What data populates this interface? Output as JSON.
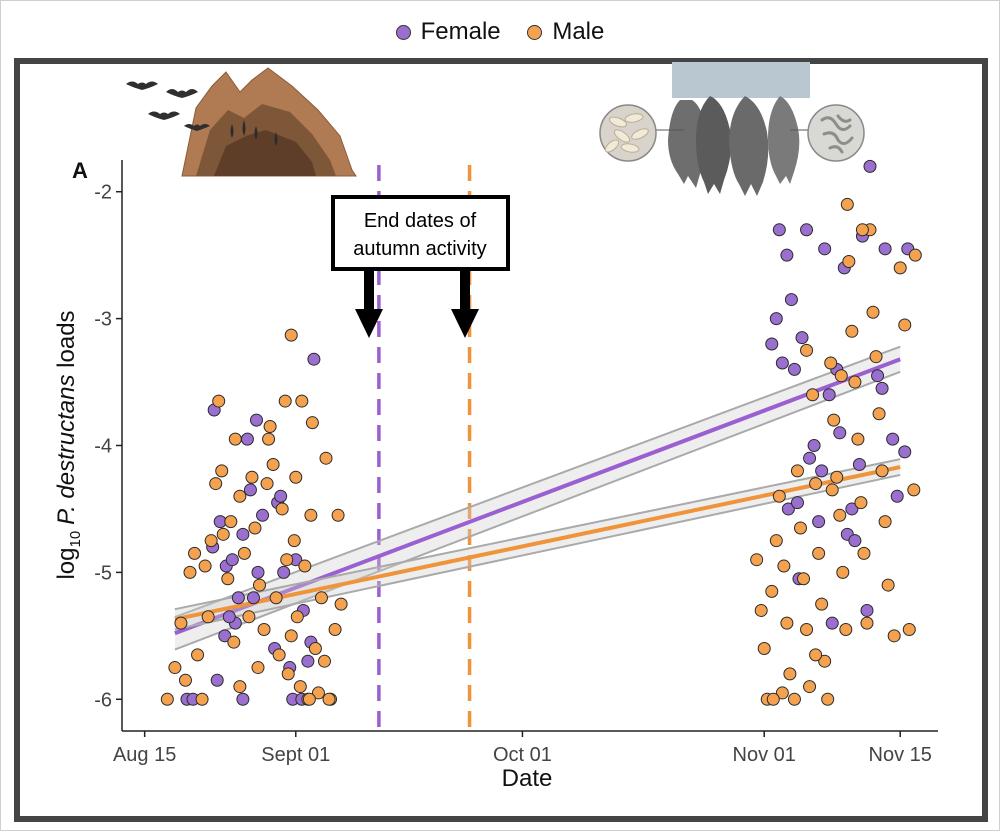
{
  "legend": {
    "female_label": "Female",
    "male_label": "Male"
  },
  "colors": {
    "female": "#9b6fcf",
    "male": "#f4a24f",
    "female_line": "#9a5fd0",
    "male_line": "#f0943b",
    "ci_line": "#aaaaaa",
    "frame": "#444444"
  },
  "panel_label": "A",
  "annotation": {
    "line1": "End dates of",
    "line2": "autumn activity"
  },
  "icons": {
    "left": "cave-with-bats-icon",
    "right": "hibernating-bats-with-fungus-icon"
  },
  "chart_data": {
    "type": "scatter",
    "xlabel": "Date",
    "ylabel_prefix": "log",
    "ylabel_sub": "10",
    "ylabel_italic": "P. destructans",
    "ylabel_suffix": " loads",
    "x_unit": "days since Aug 15",
    "xlim": [
      -1.5,
      52.5
    ],
    "ylim": [
      -6.25,
      -1.75
    ],
    "x_ticks": [
      {
        "value": 0,
        "label": "Aug 15"
      },
      {
        "value": 10,
        "label": "Sept 01"
      },
      {
        "value": 25,
        "label": "Oct 01"
      },
      {
        "value": 41,
        "label": "Nov 01"
      },
      {
        "value": 50,
        "label": "Nov 15"
      }
    ],
    "y_ticks": [
      {
        "value": -2,
        "label": "-2"
      },
      {
        "value": -3,
        "label": "-3"
      },
      {
        "value": -4,
        "label": "-4"
      },
      {
        "value": -5,
        "label": "-5"
      },
      {
        "value": -6,
        "label": "-6"
      }
    ],
    "vlines": [
      {
        "series": "Female",
        "x": 15.5
      },
      {
        "series": "Male",
        "x": 21.5
      }
    ],
    "trend_lines": [
      {
        "series": "Female",
        "x": [
          2,
          50
        ],
        "y": [
          -5.48,
          -3.32
        ],
        "ci_halfwidth": 0.08
      },
      {
        "series": "Male",
        "x": [
          2,
          50
        ],
        "y": [
          -5.37,
          -4.17
        ],
        "ci_halfwidth": 0.05
      }
    ],
    "series": [
      {
        "name": "Female",
        "points": [
          [
            2.8,
            -6.0
          ],
          [
            3.2,
            -6.0
          ],
          [
            4.8,
            -5.85
          ],
          [
            4.5,
            -4.8
          ],
          [
            5.0,
            -4.6
          ],
          [
            5.4,
            -4.95
          ],
          [
            5.3,
            -5.5
          ],
          [
            5.8,
            -4.9
          ],
          [
            6.2,
            -5.2
          ],
          [
            6.5,
            -4.7
          ],
          [
            4.6,
            -3.72
          ],
          [
            7.0,
            -4.35
          ],
          [
            6.8,
            -3.95
          ],
          [
            7.4,
            -3.8
          ],
          [
            7.5,
            -5.0
          ],
          [
            7.8,
            -4.55
          ],
          [
            6.0,
            -5.4
          ],
          [
            6.5,
            -6.0
          ],
          [
            8.6,
            -5.6
          ],
          [
            8.8,
            -4.45
          ],
          [
            9.0,
            -4.4
          ],
          [
            9.2,
            -5.0
          ],
          [
            9.6,
            -5.75
          ],
          [
            9.8,
            -6.0
          ],
          [
            10.0,
            -4.9
          ],
          [
            10.5,
            -5.3
          ],
          [
            10.4,
            -6.0
          ],
          [
            11.2,
            -3.32
          ],
          [
            11.0,
            -5.55
          ],
          [
            10.8,
            -5.7
          ],
          [
            5.6,
            -5.35
          ],
          [
            7.2,
            -5.2
          ],
          [
            41.5,
            -3.2
          ],
          [
            42.0,
            -2.3
          ],
          [
            42.5,
            -2.5
          ],
          [
            42.8,
            -2.85
          ],
          [
            42.2,
            -3.35
          ],
          [
            43.0,
            -3.4
          ],
          [
            43.5,
            -3.15
          ],
          [
            43.8,
            -2.3
          ],
          [
            44.0,
            -4.1
          ],
          [
            44.3,
            -4.0
          ],
          [
            44.6,
            -4.6
          ],
          [
            42.6,
            -4.5
          ],
          [
            43.2,
            -4.45
          ],
          [
            45.0,
            -2.45
          ],
          [
            45.3,
            -3.6
          ],
          [
            45.8,
            -3.4
          ],
          [
            46.0,
            -3.9
          ],
          [
            46.5,
            -4.7
          ],
          [
            46.8,
            -4.5
          ],
          [
            47.0,
            -4.75
          ],
          [
            46.3,
            -2.6
          ],
          [
            47.5,
            -2.35
          ],
          [
            48.0,
            -1.8
          ],
          [
            47.3,
            -4.15
          ],
          [
            48.5,
            -3.45
          ],
          [
            48.8,
            -3.55
          ],
          [
            49.0,
            -2.45
          ],
          [
            49.5,
            -3.95
          ],
          [
            49.8,
            -4.4
          ],
          [
            50.3,
            -4.05
          ],
          [
            50.5,
            -2.45
          ],
          [
            47.8,
            -5.3
          ],
          [
            44.8,
            -4.2
          ],
          [
            45.5,
            -5.4
          ],
          [
            43.3,
            -5.05
          ],
          [
            41.8,
            -3.0
          ]
        ]
      },
      {
        "name": "Male",
        "points": [
          [
            1.5,
            -6.0
          ],
          [
            2.0,
            -5.75
          ],
          [
            2.4,
            -5.4
          ],
          [
            3.0,
            -5.0
          ],
          [
            3.5,
            -5.65
          ],
          [
            3.8,
            -6.0
          ],
          [
            4.2,
            -5.35
          ],
          [
            4.0,
            -4.95
          ],
          [
            4.4,
            -4.75
          ],
          [
            4.7,
            -4.3
          ],
          [
            4.9,
            -3.65
          ],
          [
            5.1,
            -4.2
          ],
          [
            5.2,
            -4.7
          ],
          [
            5.5,
            -5.05
          ],
          [
            5.7,
            -4.6
          ],
          [
            6.0,
            -3.95
          ],
          [
            6.3,
            -4.4
          ],
          [
            6.6,
            -4.85
          ],
          [
            6.9,
            -5.35
          ],
          [
            7.1,
            -4.25
          ],
          [
            7.3,
            -4.65
          ],
          [
            7.6,
            -5.1
          ],
          [
            7.9,
            -5.45
          ],
          [
            8.1,
            -4.3
          ],
          [
            8.3,
            -3.85
          ],
          [
            8.5,
            -4.15
          ],
          [
            8.7,
            -5.2
          ],
          [
            8.9,
            -5.65
          ],
          [
            9.1,
            -4.5
          ],
          [
            9.3,
            -3.65
          ],
          [
            9.4,
            -4.9
          ],
          [
            9.5,
            -5.8
          ],
          [
            9.7,
            -5.5
          ],
          [
            9.9,
            -4.75
          ],
          [
            10.1,
            -5.35
          ],
          [
            10.3,
            -5.9
          ],
          [
            10.6,
            -4.95
          ],
          [
            10.8,
            -6.0
          ],
          [
            11.0,
            -4.55
          ],
          [
            11.3,
            -5.6
          ],
          [
            11.5,
            -5.95
          ],
          [
            11.7,
            -5.2
          ],
          [
            12.0,
            -4.1
          ],
          [
            12.3,
            -6.0
          ],
          [
            12.6,
            -5.45
          ],
          [
            12.8,
            -4.55
          ],
          [
            13.0,
            -5.25
          ],
          [
            9.7,
            -3.13
          ],
          [
            10.4,
            -3.65
          ],
          [
            11.1,
            -3.82
          ],
          [
            10.0,
            -4.25
          ],
          [
            8.2,
            -3.95
          ],
          [
            6.3,
            -5.9
          ],
          [
            7.5,
            -5.75
          ],
          [
            10.9,
            -6.0
          ],
          [
            11.9,
            -5.7
          ],
          [
            12.2,
            -6.0
          ],
          [
            5.9,
            -5.55
          ],
          [
            3.3,
            -4.85
          ],
          [
            2.7,
            -5.85
          ],
          [
            40.5,
            -4.9
          ],
          [
            40.8,
            -5.3
          ],
          [
            41.0,
            -5.6
          ],
          [
            41.2,
            -6.0
          ],
          [
            41.5,
            -5.15
          ],
          [
            41.8,
            -4.75
          ],
          [
            42.0,
            -4.4
          ],
          [
            42.3,
            -4.95
          ],
          [
            42.5,
            -5.4
          ],
          [
            42.7,
            -5.8
          ],
          [
            43.0,
            -6.0
          ],
          [
            43.2,
            -4.2
          ],
          [
            43.4,
            -4.65
          ],
          [
            43.6,
            -5.05
          ],
          [
            43.8,
            -5.45
          ],
          [
            44.0,
            -5.9
          ],
          [
            44.2,
            -3.6
          ],
          [
            44.4,
            -4.3
          ],
          [
            44.6,
            -4.85
          ],
          [
            44.8,
            -5.25
          ],
          [
            45.0,
            -5.7
          ],
          [
            45.2,
            -6.0
          ],
          [
            45.4,
            -3.35
          ],
          [
            45.6,
            -3.8
          ],
          [
            45.8,
            -4.25
          ],
          [
            46.0,
            -4.55
          ],
          [
            46.2,
            -5.0
          ],
          [
            46.4,
            -5.45
          ],
          [
            46.6,
            -2.55
          ],
          [
            46.8,
            -3.1
          ],
          [
            47.0,
            -3.5
          ],
          [
            47.2,
            -3.95
          ],
          [
            47.4,
            -4.45
          ],
          [
            47.6,
            -4.85
          ],
          [
            47.8,
            -5.4
          ],
          [
            48.0,
            -2.3
          ],
          [
            48.2,
            -2.95
          ],
          [
            48.4,
            -3.3
          ],
          [
            48.6,
            -3.75
          ],
          [
            48.8,
            -4.2
          ],
          [
            49.0,
            -4.6
          ],
          [
            49.2,
            -5.1
          ],
          [
            49.6,
            -5.5
          ],
          [
            50.0,
            -2.6
          ],
          [
            50.3,
            -3.05
          ],
          [
            50.6,
            -5.45
          ],
          [
            50.9,
            -4.35
          ],
          [
            51.0,
            -2.5
          ],
          [
            46.5,
            -2.1
          ],
          [
            45.5,
            -4.35
          ],
          [
            44.4,
            -5.65
          ],
          [
            42.2,
            -5.95
          ],
          [
            43.8,
            -3.25
          ],
          [
            47.5,
            -2.3
          ],
          [
            46.1,
            -3.45
          ],
          [
            41.6,
            -6.0
          ]
        ]
      }
    ]
  }
}
